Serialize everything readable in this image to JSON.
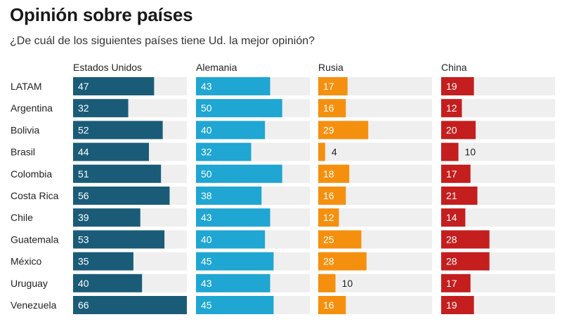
{
  "title": "Opinión sobre países",
  "subtitle": "¿De cuál de los siguientes países tiene Ud. la mejor opinión?",
  "chart_data": {
    "type": "bar",
    "orientation": "horizontal-small-multiples",
    "categories": [
      "LATAM",
      "Argentina",
      "Bolivia",
      "Brasil",
      "Colombia",
      "Costa Rica",
      "Chile",
      "Guatemala",
      "México",
      "Uruguay",
      "Venezuela"
    ],
    "series": [
      {
        "name": "Estados Unidos",
        "color": "#1a5c78",
        "values": [
          47,
          32,
          52,
          44,
          51,
          56,
          39,
          53,
          35,
          40,
          66
        ]
      },
      {
        "name": "Alemania",
        "color": "#1fa6d2",
        "values": [
          43,
          50,
          40,
          32,
          50,
          38,
          43,
          40,
          45,
          43,
          45
        ]
      },
      {
        "name": "Rusia",
        "color": "#f5900f",
        "values": [
          17,
          16,
          29,
          4,
          18,
          16,
          12,
          25,
          28,
          10,
          16
        ]
      },
      {
        "name": "China",
        "color": "#c41e1e",
        "values": [
          19,
          12,
          20,
          10,
          17,
          21,
          14,
          28,
          28,
          17,
          19
        ]
      }
    ],
    "xlim": [
      0,
      66
    ],
    "colors": {
      "track": "#efefef"
    }
  }
}
